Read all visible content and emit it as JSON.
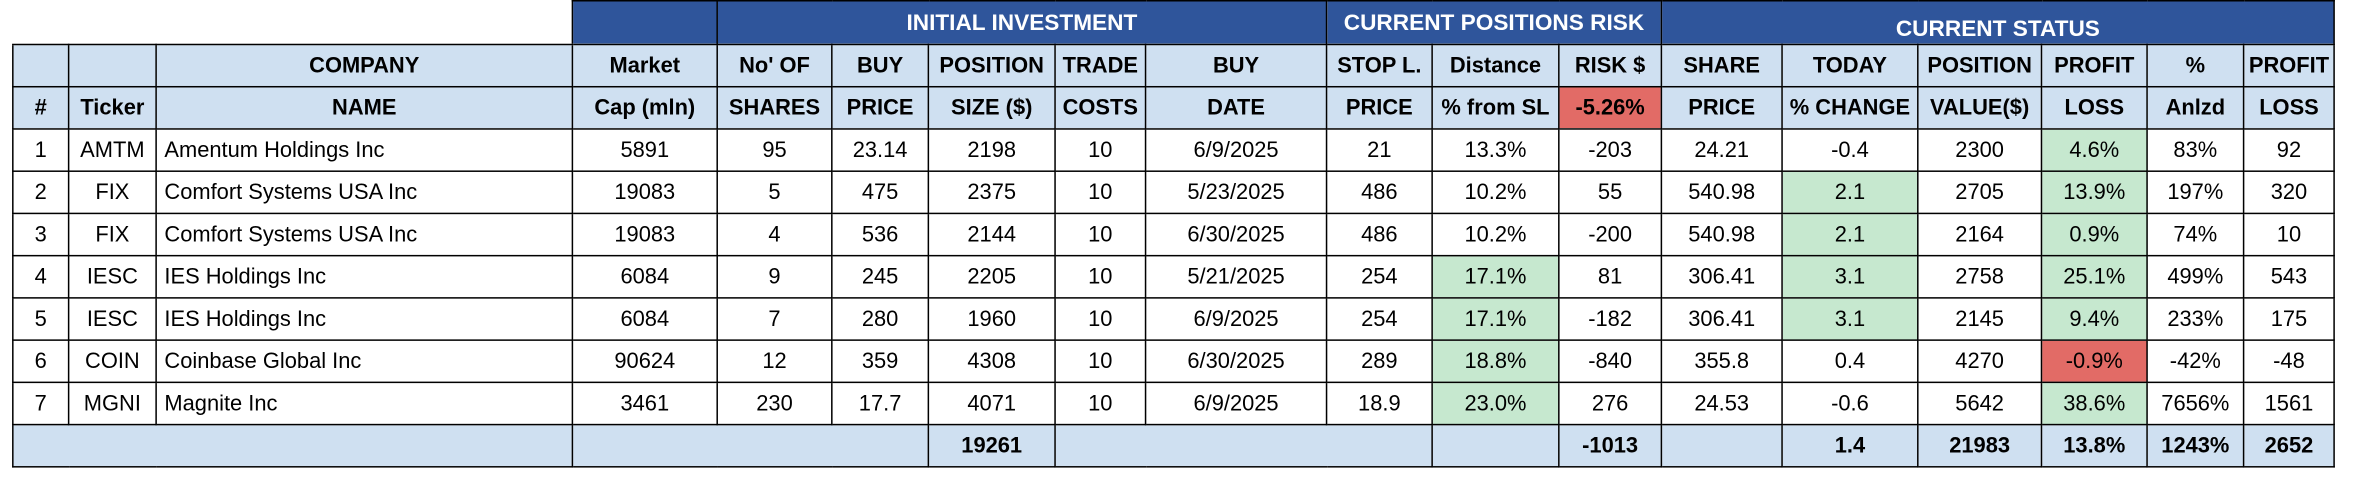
{
  "sheet": {
    "group_headers": {
      "initial_investment": "INITIAL INVESTMENT",
      "current_positions_risk": "CURRENT POSITIONS RISK",
      "current_status": "CURRENT STATUS"
    },
    "header_row1": {
      "company": "COMPANY",
      "market": "Market",
      "no_of": "No' OF",
      "buy": "BUY",
      "position": "POSITION",
      "trade": "TRADE",
      "buy2": "BUY",
      "stop": "STOP L.",
      "distance": "Distance",
      "risk": "RISK $",
      "share": "SHARE",
      "today": "TODAY",
      "position2": "POSITION",
      "profit": "PROFIT",
      "pct": "%",
      "profit2": "PROFIT"
    },
    "header_row2": {
      "num": "#",
      "ticker": "Ticker",
      "name": "NAME",
      "cap": "Cap (mln)",
      "shares": "SHARES",
      "price": "PRICE",
      "size": "SIZE ($)",
      "costs": "COSTS",
      "date": "DATE",
      "stop_price": "PRICE",
      "from_sl": "% from SL",
      "risk_pct": "-5.26%",
      "share_price": "PRICE",
      "pct_change": "% CHANGE",
      "value": "VALUE($)",
      "loss": "LOSS",
      "anlzd": "Anlzd",
      "loss2": "LOSS"
    },
    "rows": [
      {
        "num": "1",
        "ticker": "AMTM",
        "name": "Amentum Holdings Inc",
        "cap": "5891",
        "shares": "95",
        "buy_price": "23.14",
        "size": "2198",
        "costs": "10",
        "date": "6/9/2025",
        "stop": "21",
        "dist": "13.3%",
        "risk": "-203",
        "share_price": "24.21",
        "today": "-0.4",
        "value": "2300",
        "profit_pct": "4.6%",
        "anlzd": "83%",
        "profit": "92"
      },
      {
        "num": "2",
        "ticker": "FIX",
        "name": "Comfort Systems USA Inc",
        "cap": "19083",
        "shares": "5",
        "buy_price": "475",
        "size": "2375",
        "costs": "10",
        "date": "5/23/2025",
        "stop": "486",
        "dist": "10.2%",
        "risk": "55",
        "share_price": "540.98",
        "today": "2.1",
        "value": "2705",
        "profit_pct": "13.9%",
        "anlzd": "197%",
        "profit": "320"
      },
      {
        "num": "3",
        "ticker": "FIX",
        "name": "Comfort Systems USA Inc",
        "cap": "19083",
        "shares": "4",
        "buy_price": "536",
        "size": "2144",
        "costs": "10",
        "date": "6/30/2025",
        "stop": "486",
        "dist": "10.2%",
        "risk": "-200",
        "share_price": "540.98",
        "today": "2.1",
        "value": "2164",
        "profit_pct": "0.9%",
        "anlzd": "74%",
        "profit": "10"
      },
      {
        "num": "4",
        "ticker": "IESC",
        "name": "IES Holdings Inc",
        "cap": "6084",
        "shares": "9",
        "buy_price": "245",
        "size": "2205",
        "costs": "10",
        "date": "5/21/2025",
        "stop": "254",
        "dist": "17.1%",
        "risk": "81",
        "share_price": "306.41",
        "today": "3.1",
        "value": "2758",
        "profit_pct": "25.1%",
        "anlzd": "499%",
        "profit": "543"
      },
      {
        "num": "5",
        "ticker": "IESC",
        "name": "IES Holdings Inc",
        "cap": "6084",
        "shares": "7",
        "buy_price": "280",
        "size": "1960",
        "costs": "10",
        "date": "6/9/2025",
        "stop": "254",
        "dist": "17.1%",
        "risk": "-182",
        "share_price": "306.41",
        "today": "3.1",
        "value": "2145",
        "profit_pct": "9.4%",
        "anlzd": "233%",
        "profit": "175"
      },
      {
        "num": "6",
        "ticker": "COIN",
        "name": "Coinbase Global Inc",
        "cap": "90624",
        "shares": "12",
        "buy_price": "359",
        "size": "4308",
        "costs": "10",
        "date": "6/30/2025",
        "stop": "289",
        "dist": "18.8%",
        "risk": "-840",
        "share_price": "355.8",
        "today": "0.4",
        "value": "4270",
        "profit_pct": "-0.9%",
        "anlzd": "-42%",
        "profit": "-48"
      },
      {
        "num": "7",
        "ticker": "MGNI",
        "name": "Magnite Inc",
        "cap": "3461",
        "shares": "230",
        "buy_price": "17.7",
        "size": "4071",
        "costs": "10",
        "date": "6/9/2025",
        "stop": "18.9",
        "dist": "23.0%",
        "risk": "276",
        "share_price": "24.53",
        "today": "-0.6",
        "value": "5642",
        "profit_pct": "38.6%",
        "anlzd": "7656%",
        "profit": "1561"
      }
    ],
    "totals": {
      "size": "19261",
      "risk": "-1013",
      "today": "1.4",
      "value": "21983",
      "profit_pct": "13.8%",
      "anlzd": "1243%",
      "profit": "2652"
    },
    "colors": {
      "header_navy": "#2f559b",
      "header_light_blue": "#cfe0f1",
      "positive_green": "#c6e8cf",
      "negative_red": "#e26b66"
    }
  }
}
